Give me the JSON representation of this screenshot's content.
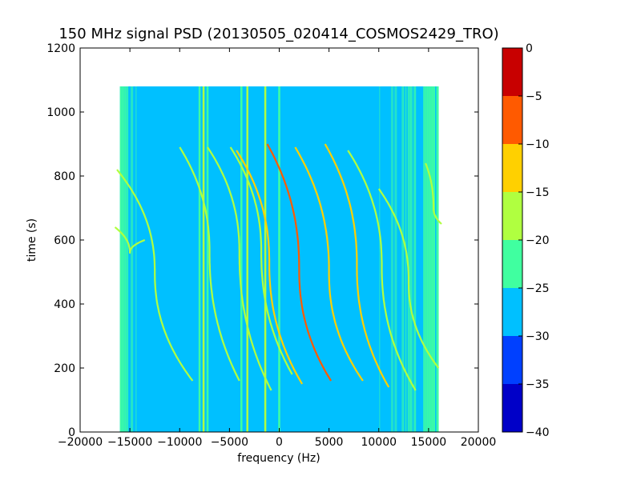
{
  "chart_data": {
    "type": "heatmap",
    "title": "150 MHz signal PSD (20130505_020414_COSMOS2429_TRO)",
    "xlabel": "frequency (Hz)",
    "ylabel": "time (s)",
    "xlim": [
      -20000,
      20000
    ],
    "ylim": [
      0,
      1200
    ],
    "xticks": [
      -20000,
      -15000,
      -10000,
      -5000,
      0,
      5000,
      10000,
      15000,
      20000
    ],
    "xtick_labels": [
      "−20000",
      "−15000",
      "−10000",
      "−5000",
      "0",
      "5000",
      "10000",
      "15000",
      "20000"
    ],
    "yticks": [
      0,
      200,
      400,
      600,
      800,
      1000,
      1200
    ],
    "ytick_labels": [
      "0",
      "200",
      "400",
      "600",
      "800",
      "1000",
      "1200"
    ],
    "data_extent": {
      "freq": [
        -16000,
        16000
      ],
      "time": [
        0,
        1080
      ]
    },
    "background_level": -28,
    "edge_band_level": -23,
    "colorbar": {
      "min": -40,
      "max": 0,
      "levels": [
        -40,
        -35,
        -30,
        -25,
        -20,
        -15,
        -10,
        -5,
        0
      ],
      "tick_labels": [
        "0",
        "−5",
        "−10",
        "−15",
        "−20",
        "−25",
        "−30",
        "−35",
        "−40"
      ],
      "colors": [
        "#0000c8",
        "#0040ff",
        "#00c0ff",
        "#40ffa0",
        "#b0ff40",
        "#ffd000",
        "#ff5a00",
        "#c80000"
      ]
    },
    "vertical_lines": [
      {
        "freq": -8000,
        "level": -22
      },
      {
        "freq": -7600,
        "level": -20
      },
      {
        "freq": -7200,
        "level": -22
      },
      {
        "freq": -3800,
        "level": -22
      },
      {
        "freq": -3200,
        "level": -20
      },
      {
        "freq": -1400,
        "level": -20
      },
      {
        "freq": 0,
        "level": -23
      }
    ],
    "doppler_traces": [
      {
        "center_freq": -15000,
        "center_time": 560,
        "start_time": 640,
        "end_time": 600,
        "half_span_hz": 1500,
        "level": -18
      },
      {
        "center_freq": -12500,
        "center_time": 500,
        "start_time": 820,
        "end_time": 160,
        "half_span_hz": 3800,
        "level": -18
      },
      {
        "center_freq": -7000,
        "center_time": 560,
        "start_time": 890,
        "end_time": 160,
        "half_span_hz": 3000,
        "level": -18
      },
      {
        "center_freq": -4000,
        "center_time": 560,
        "start_time": 890,
        "end_time": 130,
        "half_span_hz": 3200,
        "level": -18
      },
      {
        "center_freq": -1800,
        "center_time": 560,
        "start_time": 890,
        "end_time": 180,
        "half_span_hz": 3100,
        "level": -18
      },
      {
        "center_freq": -1000,
        "center_time": 530,
        "start_time": 880,
        "end_time": 150,
        "half_span_hz": 3300,
        "level": -15
      },
      {
        "center_freq": 2000,
        "center_time": 510,
        "start_time": 900,
        "end_time": 160,
        "half_span_hz": 3200,
        "level": -8
      },
      {
        "center_freq": 5000,
        "center_time": 500,
        "start_time": 890,
        "end_time": 160,
        "half_span_hz": 3400,
        "level": -15
      },
      {
        "center_freq": 7800,
        "center_time": 520,
        "start_time": 900,
        "end_time": 140,
        "half_span_hz": 3200,
        "level": -12
      },
      {
        "center_freq": 10300,
        "center_time": 520,
        "start_time": 880,
        "end_time": 130,
        "half_span_hz": 3400,
        "level": -18
      },
      {
        "center_freq": 13000,
        "center_time": 470,
        "start_time": 760,
        "end_time": 200,
        "half_span_hz": 3000,
        "level": -20
      },
      {
        "center_freq": 15500,
        "center_time": 700,
        "start_time": 840,
        "end_time": 650,
        "half_span_hz": 800,
        "level": -18
      }
    ]
  }
}
